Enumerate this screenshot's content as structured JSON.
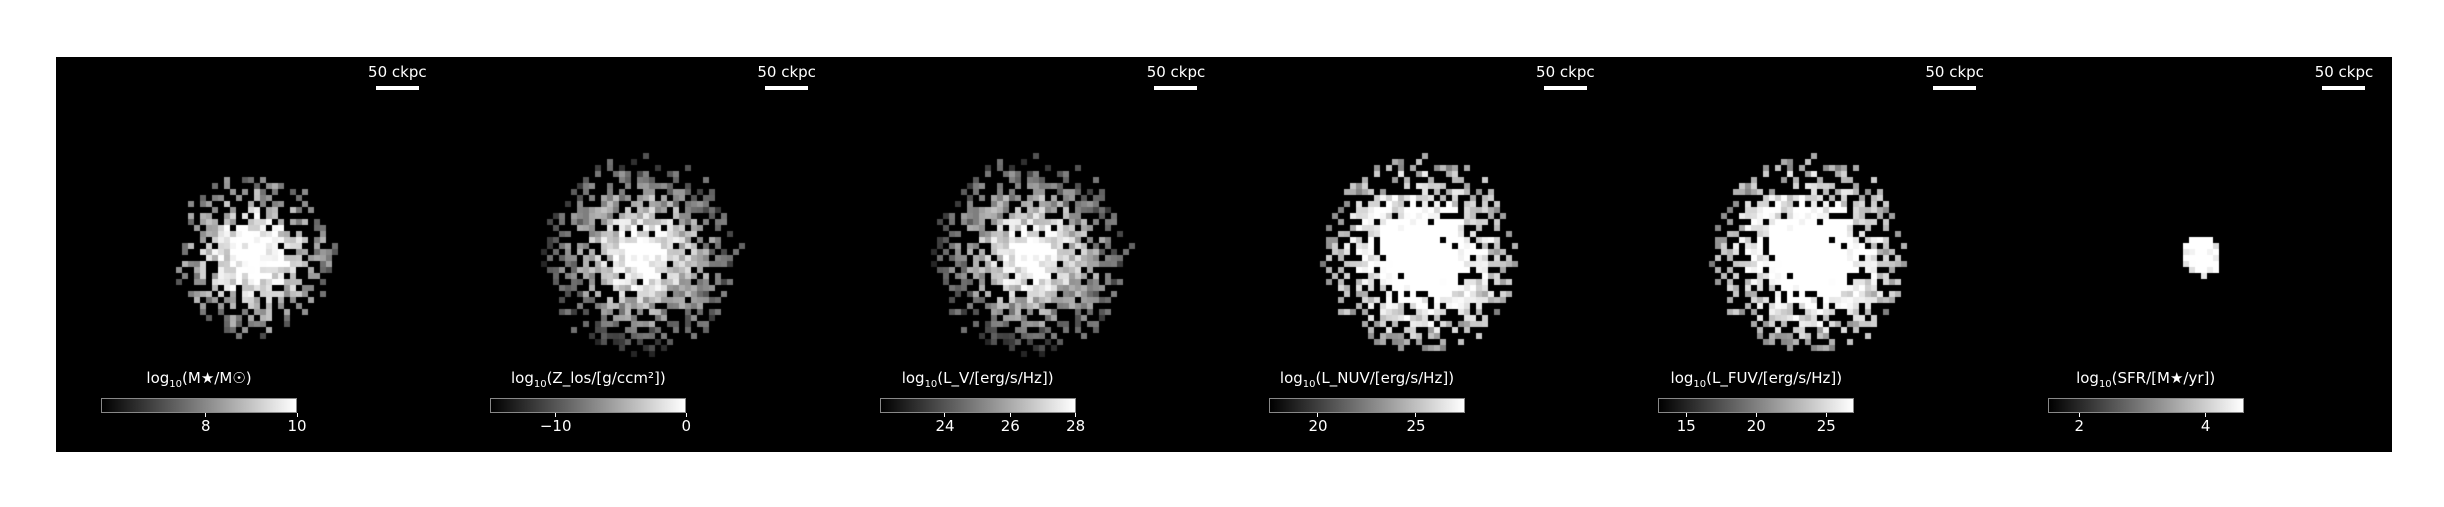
{
  "colors": {
    "background": "#000000",
    "text": "#ffffff",
    "page": "#ffffff"
  },
  "panels": [
    {
      "scale_bar": "50 ckpc",
      "colorbar": {
        "label_pre": "log",
        "label_sub": "10",
        "label_post": "(M★/M☉)",
        "range": [
          5.7,
          10.0
        ],
        "ticks": [
          {
            "value": 8,
            "label": "8"
          },
          {
            "value": 10,
            "label": "10"
          }
        ]
      },
      "image": {
        "spread": 0.8,
        "density": 0.35,
        "core": 1.0
      }
    },
    {
      "scale_bar": "50 ckpc",
      "colorbar": {
        "label_pre": "log",
        "label_sub": "10",
        "label_post": "(Z_los/[g/ccm²])",
        "range": [
          -15.0,
          0.0
        ],
        "ticks": [
          {
            "value": -10,
            "label": "−10"
          },
          {
            "value": 0,
            "label": "0"
          }
        ]
      },
      "image": {
        "spread": 1.0,
        "density": 0.75,
        "core": 0.95
      }
    },
    {
      "scale_bar": "50 ckpc",
      "colorbar": {
        "label_pre": "log",
        "label_sub": "10",
        "label_post": "(L_V/[erg/s/Hz])",
        "range": [
          22.0,
          28.0
        ],
        "ticks": [
          {
            "value": 24,
            "label": "24"
          },
          {
            "value": 26,
            "label": "26"
          },
          {
            "value": 28,
            "label": "28"
          }
        ]
      },
      "image": {
        "spread": 1.0,
        "density": 0.75,
        "core": 0.95
      }
    },
    {
      "scale_bar": "50 ckpc",
      "colorbar": {
        "label_pre": "log",
        "label_sub": "10",
        "label_post": "(L_NUV/[erg/s/Hz])",
        "range": [
          17.5,
          27.5
        ],
        "ticks": [
          {
            "value": 20,
            "label": "20"
          },
          {
            "value": 25,
            "label": "25"
          }
        ]
      },
      "image": {
        "spread": 1.0,
        "density": 0.8,
        "core": 0.85
      }
    },
    {
      "scale_bar": "50 ckpc",
      "colorbar": {
        "label_pre": "log",
        "label_sub": "10",
        "label_post": "(L_FUV/[erg/s/Hz])",
        "range": [
          13.0,
          27.0
        ],
        "ticks": [
          {
            "value": 15,
            "label": "15"
          },
          {
            "value": 20,
            "label": "20"
          },
          {
            "value": 25,
            "label": "25"
          }
        ]
      },
      "image": {
        "spread": 1.0,
        "density": 0.8,
        "core": 0.85
      }
    },
    {
      "scale_bar": "50 ckpc",
      "colorbar": {
        "label_pre": "log",
        "label_sub": "10",
        "label_post": "(SFR/[M★/yr])",
        "range": [
          1.5,
          4.6
        ],
        "ticks": [
          {
            "value": 2,
            "label": "2"
          },
          {
            "value": 4,
            "label": "4"
          }
        ]
      },
      "image": {
        "spread": 0.15,
        "density": 0.08,
        "core": 1.0
      }
    }
  ]
}
